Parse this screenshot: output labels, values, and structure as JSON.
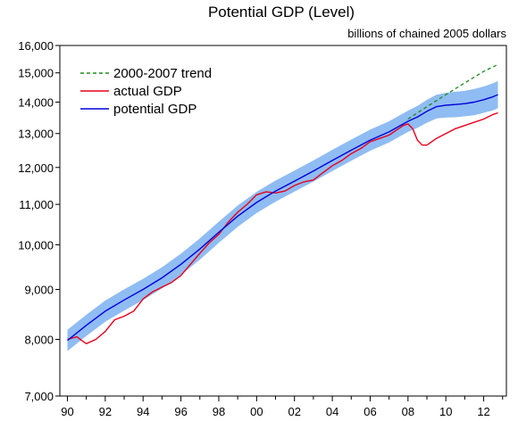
{
  "chart_data": {
    "type": "line",
    "title": "Potential GDP (Level)",
    "subtitle": "billions of chained 2005 dollars",
    "y_scale": "log",
    "ylim": [
      7000,
      16000
    ],
    "xlim": [
      1989.6,
      2013.2
    ],
    "y_ticks": [
      {
        "value": 7000,
        "label": "7,000"
      },
      {
        "value": 8000,
        "label": "8,000"
      },
      {
        "value": 9000,
        "label": "9,000"
      },
      {
        "value": 10000,
        "label": "10,000"
      },
      {
        "value": 11000,
        "label": "11,000"
      },
      {
        "value": 12000,
        "label": "12,000"
      },
      {
        "value": 13000,
        "label": "13,000"
      },
      {
        "value": 14000,
        "label": "14,000"
      },
      {
        "value": 15000,
        "label": "15,000"
      },
      {
        "value": 16000,
        "label": "16,000"
      }
    ],
    "x_ticks": [
      {
        "value": 1990,
        "label": "90"
      },
      {
        "value": 1992,
        "label": "92"
      },
      {
        "value": 1994,
        "label": "94"
      },
      {
        "value": 1996,
        "label": "96"
      },
      {
        "value": 1998,
        "label": "98"
      },
      {
        "value": 2000,
        "label": "00"
      },
      {
        "value": 2002,
        "label": "02"
      },
      {
        "value": 2004,
        "label": "04"
      },
      {
        "value": 2006,
        "label": "06"
      },
      {
        "value": 2008,
        "label": "08"
      },
      {
        "value": 2010,
        "label": "10"
      },
      {
        "value": 2012,
        "label": "12"
      }
    ],
    "legend_position": "top-left",
    "grid": false,
    "series": [
      {
        "name": "2000-2007 trend",
        "style": "dashed",
        "color": "#1e8c1e",
        "x": [
          2008.0,
          2009.0,
          2010.0,
          2011.0,
          2012.0,
          2012.75
        ],
        "y": [
          13450,
          13850,
          14250,
          14650,
          15050,
          15300
        ]
      },
      {
        "name": "actual GDP",
        "style": "solid",
        "color": "#e8001c",
        "x": [
          1990.0,
          1990.5,
          1990.75,
          1991.0,
          1991.25,
          1991.5,
          1992.0,
          1992.5,
          1993.0,
          1993.5,
          1994.0,
          1994.5,
          1995.0,
          1995.5,
          1996.0,
          1996.5,
          1997.0,
          1997.5,
          1998.0,
          1998.5,
          1999.0,
          1999.5,
          2000.0,
          2000.5,
          2001.0,
          2001.5,
          2002.0,
          2002.5,
          2003.0,
          2003.5,
          2004.0,
          2004.5,
          2005.0,
          2005.5,
          2006.0,
          2006.5,
          2007.0,
          2007.5,
          2007.75,
          2008.0,
          2008.25,
          2008.5,
          2008.75,
          2009.0,
          2009.5,
          2010.0,
          2010.5,
          2011.0,
          2011.5,
          2012.0,
          2012.5,
          2012.75
        ],
        "y": [
          8000,
          8050,
          7980,
          7920,
          7960,
          8000,
          8150,
          8380,
          8450,
          8550,
          8800,
          8950,
          9050,
          9150,
          9300,
          9550,
          9800,
          10050,
          10250,
          10550,
          10800,
          11000,
          11250,
          11330,
          11300,
          11350,
          11500,
          11600,
          11650,
          11850,
          12050,
          12200,
          12400,
          12550,
          12750,
          12850,
          12950,
          13150,
          13250,
          13300,
          13150,
          12800,
          12650,
          12650,
          12850,
          13000,
          13150,
          13250,
          13350,
          13450,
          13600,
          13650
        ]
      },
      {
        "name": "potential GDP",
        "style": "solid",
        "color": "#0000dd",
        "band_color": "#8fbcf2",
        "x": [
          1990.0,
          1991.0,
          1992.0,
          1993.0,
          1994.0,
          1995.0,
          1996.0,
          1997.0,
          1998.0,
          1999.0,
          2000.0,
          2001.0,
          2002.0,
          2003.0,
          2004.0,
          2005.0,
          2006.0,
          2007.0,
          2008.0,
          2008.5,
          2009.0,
          2009.5,
          2010.0,
          2010.5,
          2011.0,
          2011.5,
          2012.0,
          2012.5,
          2012.75
        ],
        "y": [
          7980,
          8270,
          8550,
          8780,
          9000,
          9250,
          9550,
          9900,
          10300,
          10700,
          11050,
          11350,
          11620,
          11900,
          12200,
          12500,
          12800,
          13050,
          13380,
          13520,
          13700,
          13850,
          13900,
          13920,
          13950,
          14000,
          14080,
          14180,
          14250
        ],
        "band_width": [
          0.025,
          0.025,
          0.025,
          0.025,
          0.025,
          0.025,
          0.025,
          0.025,
          0.025,
          0.025,
          0.025,
          0.025,
          0.025,
          0.025,
          0.025,
          0.025,
          0.025,
          0.025,
          0.025,
          0.026,
          0.027,
          0.028,
          0.029,
          0.03,
          0.03,
          0.031,
          0.031,
          0.032,
          0.032
        ]
      }
    ]
  }
}
